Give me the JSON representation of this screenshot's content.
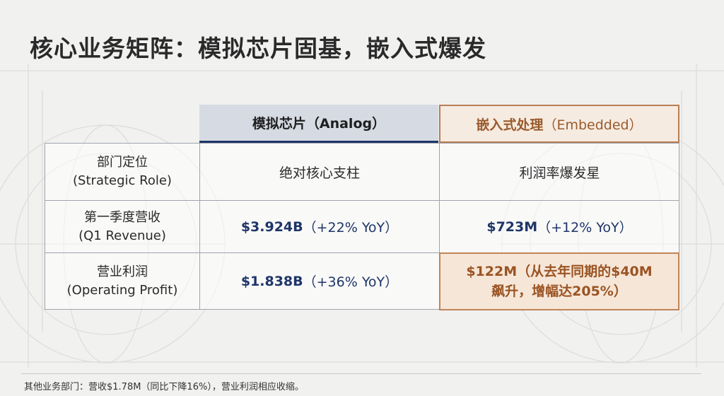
{
  "title": "核心业务矩阵：模拟芯片固基，嵌入式爆发",
  "columns": {
    "analog": "模拟芯片（Analog）",
    "embedded_zh": "嵌入式处理",
    "embedded_en": "（Embedded）"
  },
  "rows": [
    {
      "label_zh": "部门定位",
      "label_en": "(Strategic Role)",
      "analog": "绝对核心支柱",
      "embedded": "利润率爆发星"
    },
    {
      "label_zh": "第一季度营收",
      "label_en": "(Q1 Revenue)",
      "analog_value": "$3.924B",
      "analog_change": "（+22% YoY）",
      "embedded_value": "$723M",
      "embedded_change": "（+12% YoY）"
    },
    {
      "label_zh": "营业利润",
      "label_en": "(Operating Profit)",
      "analog_value": "$1.838B",
      "analog_change": "（+36% YoY）",
      "embedded_line1": "$122M（从去年同期的$40M",
      "embedded_line2": "飙升，增幅达205%）"
    }
  ],
  "footer": "其他业务部门：营收$1.78M（同比下降16%），营业利润相应收缩。",
  "colors": {
    "navy": "#1e3568",
    "copper": "#b97d52",
    "highlight_bg": "#f6e6d7"
  }
}
